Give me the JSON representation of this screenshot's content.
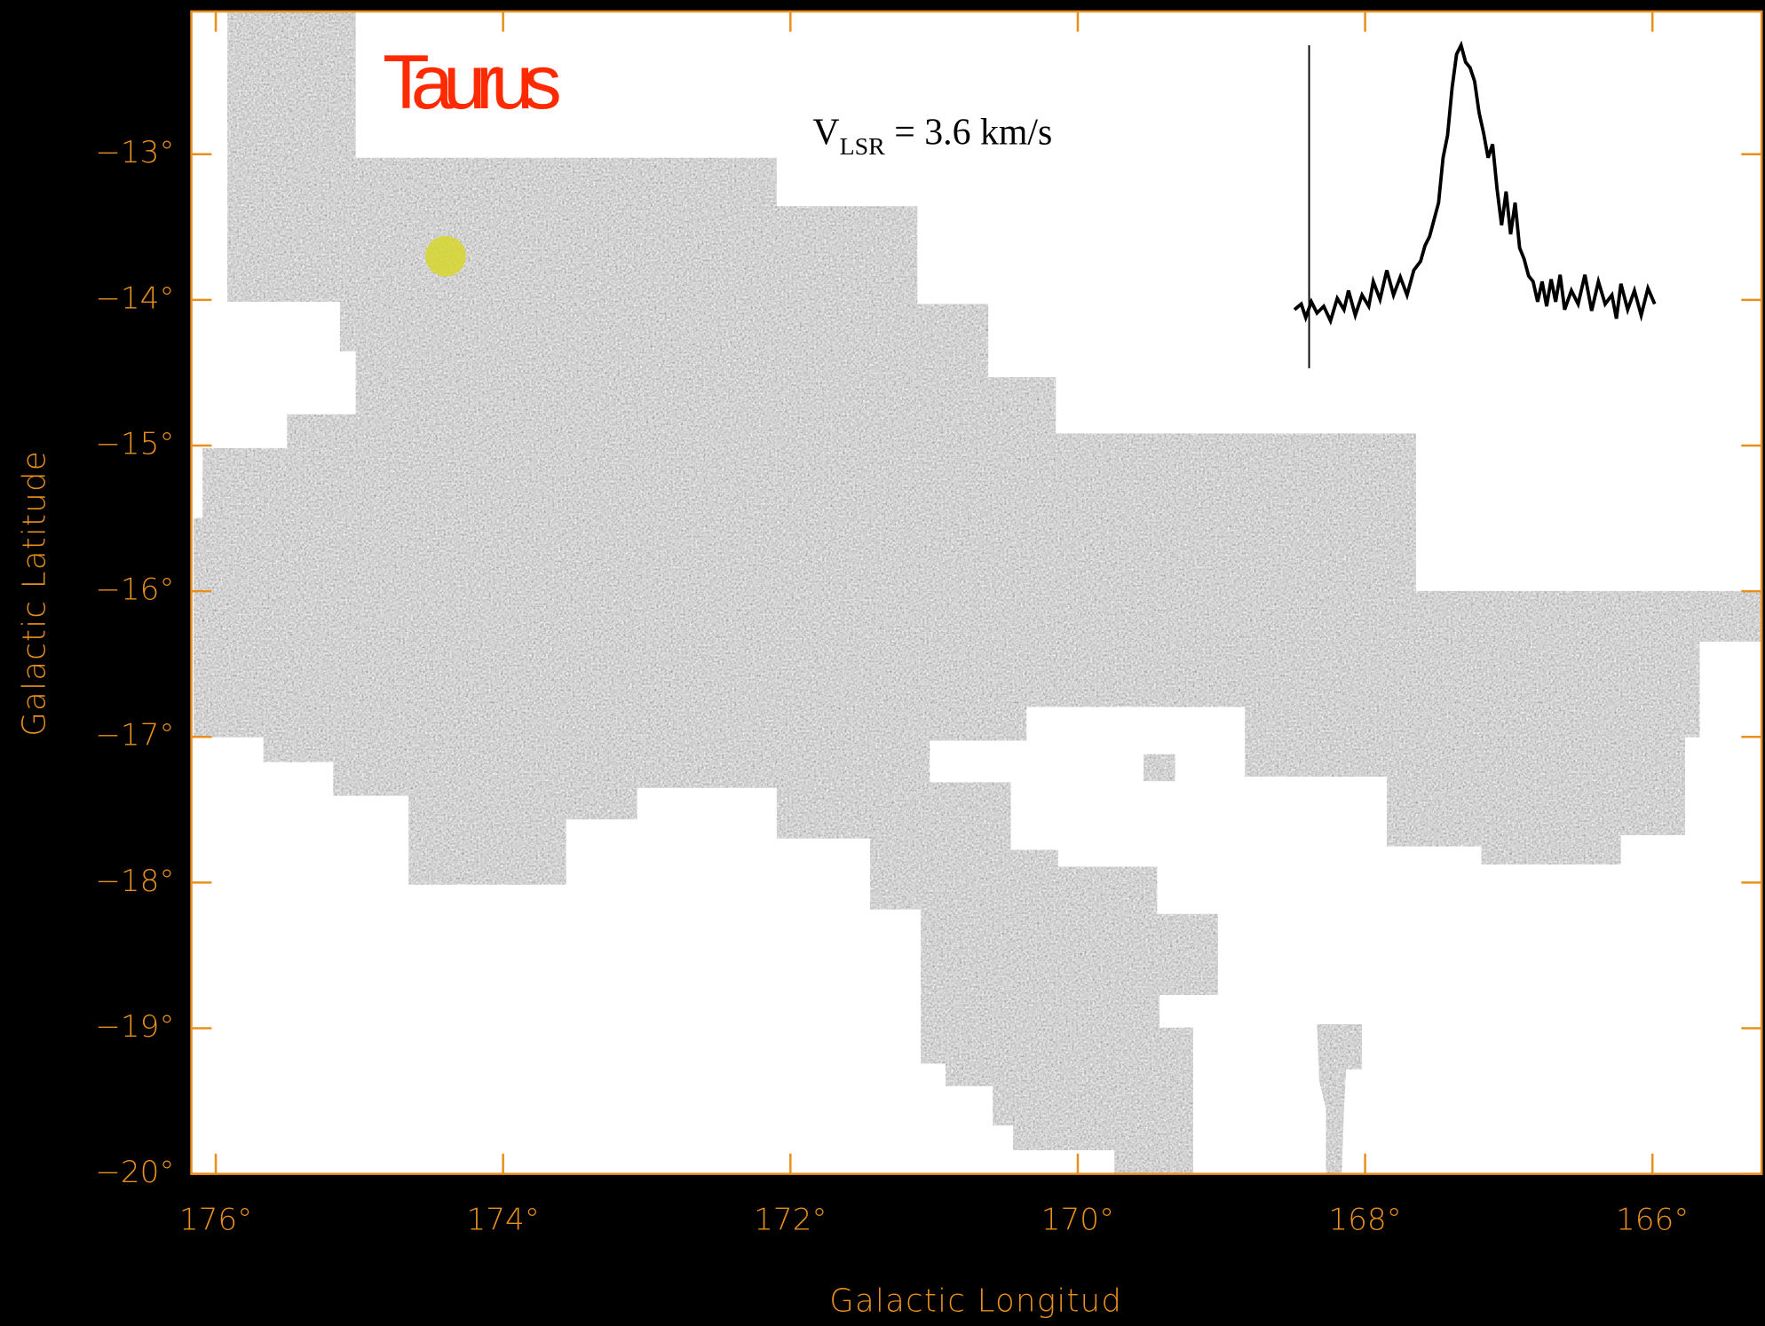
{
  "chart_data": {
    "type": "map",
    "title": "Taurus",
    "title_color": "#ff2a00",
    "annotation": {
      "text": "V",
      "subscript": "LSR",
      "suffix": " = 3.6 km/s"
    },
    "xlabel": "Galactic Longitud",
    "ylabel": "Galactic Latitude",
    "axis_color": "#e8901e",
    "xlim": [
      176.17,
      165.24
    ],
    "ylim": [
      -20,
      -12.02
    ],
    "xticks": [
      {
        "value": 176,
        "label": "176°"
      },
      {
        "value": 174,
        "label": "174°"
      },
      {
        "value": 172,
        "label": "172°"
      },
      {
        "value": 170,
        "label": "170°"
      },
      {
        "value": 168,
        "label": "168°"
      },
      {
        "value": 166,
        "label": "166°"
      }
    ],
    "yticks": [
      {
        "value": -13,
        "label": "−13°"
      },
      {
        "value": -14,
        "label": "−14°"
      },
      {
        "value": -15,
        "label": "−15°"
      },
      {
        "value": -16,
        "label": "−16°"
      },
      {
        "value": -17,
        "label": "−17°"
      },
      {
        "value": -18,
        "label": "−18°"
      },
      {
        "value": -19,
        "label": "−19°"
      },
      {
        "value": -20,
        "label": "−20°"
      }
    ],
    "marker": {
      "x": 174.4,
      "y": -13.7,
      "color": "#d6d62e"
    }
  }
}
